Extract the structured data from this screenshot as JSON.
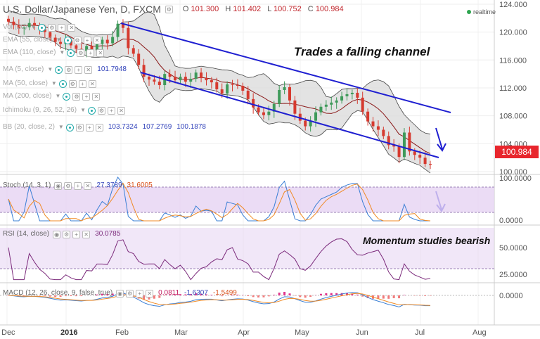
{
  "header": {
    "symbol": "USDJPY",
    "title": "U.S. Dollar/Japanese Yen, D, FXCM",
    "o_label": "O",
    "o": "101.300",
    "h_label": "H",
    "h": "101.402",
    "l_label": "L",
    "l": "100.752",
    "c_label": "C",
    "c": "100.984",
    "realtime": "realtime"
  },
  "indicators": [
    {
      "name": "Vol (20)",
      "value": ""
    },
    {
      "name": "EMA (55, close)",
      "value": ""
    },
    {
      "name": "EMA (110, close)",
      "value": ""
    },
    {
      "name": "MA (5, close)",
      "value": "101.7948"
    },
    {
      "name": "MA (50, close)",
      "value": ""
    },
    {
      "name": "MA (200, close)",
      "value": ""
    },
    {
      "name": "Ichimoku (9, 26, 52, 26)",
      "value": ""
    },
    {
      "name": "BB (20, close, 2)",
      "values": [
        "103.7324",
        "107.2769",
        "100.1878"
      ]
    }
  ],
  "sub_panels": {
    "stoch": {
      "name": "Stoch (14, 3, 1)",
      "v1": "27.3789",
      "v2": "31.6005"
    },
    "rsi": {
      "name": "RSI (14, close)",
      "v1": "30.0785"
    },
    "macd": {
      "name": "MACD (12, 26, close, 9, false, true)",
      "v1": "0.0811",
      "v2": "-1.6307",
      "v3": "-1.5499"
    }
  },
  "annotations": {
    "channel": "Trades a falling channel",
    "momentum": "Momentum studies bearish"
  },
  "price_tag": "100.984",
  "colors": {
    "up": "#3e9a5a",
    "down": "#d63a2f",
    "bb_fill": "#d9d9d9",
    "bb_line": "#444",
    "ma": "#8b1a1a",
    "channel": "#1f1fd1",
    "stoch_fill": "#e6d3f2",
    "price_tag": "#e8262d",
    "blue_line": "#3a7fd5",
    "orange_line": "#f08a24",
    "rsi_line": "#7b2a7b",
    "hist_pos": "#e0368c",
    "hist_neg": "#f07a7a"
  },
  "chart_data": {
    "type": "candlestick",
    "x_ticks": [
      "Dec",
      "2016",
      "Feb",
      "Mar",
      "Apr",
      "May",
      "Jun",
      "Jul",
      "Aug"
    ],
    "price_axis": [
      "124.000",
      "120.000",
      "116.000",
      "112.000",
      "108.000",
      "104.000",
      "100.000"
    ],
    "ylim": [
      99.6,
      124.6
    ],
    "close": [
      121.5,
      121.0,
      120.5,
      120.7,
      121.3,
      120.9,
      120.4,
      120.0,
      119.2,
      118.6,
      118.3,
      118.8,
      118.1,
      117.6,
      117.3,
      118.0,
      117.4,
      118.3,
      118.9,
      118.4,
      119.3,
      121.2,
      120.6,
      117.7,
      116.9,
      115.3,
      113.6,
      113.2,
      112.9,
      112.4,
      114.0,
      113.6,
      113.1,
      113.6,
      112.9,
      113.3,
      114.2,
      113.4,
      113.1,
      112.8,
      111.8,
      111.2,
      112.5,
      112.4,
      112.3,
      111.6,
      110.4,
      109.2,
      108.5,
      108.1,
      108.6,
      109.7,
      111.7,
      112.1,
      110.2,
      108.3,
      107.3,
      106.5,
      107.3,
      108.5,
      109.3,
      109.6,
      109.9,
      110.2,
      110.8,
      111.1,
      111.3,
      110.6,
      108.6,
      107.2,
      106.5,
      106.0,
      105.1,
      103.8,
      103.6,
      102.1,
      105.6,
      102.9,
      102.4,
      102.0,
      101.1,
      100.98
    ],
    "stoch_axis": [
      "100.0000",
      "0.0000"
    ],
    "rsi_axis": [
      "50.0000",
      "25.0000"
    ],
    "macd_axis": [
      "0.0000"
    ]
  }
}
